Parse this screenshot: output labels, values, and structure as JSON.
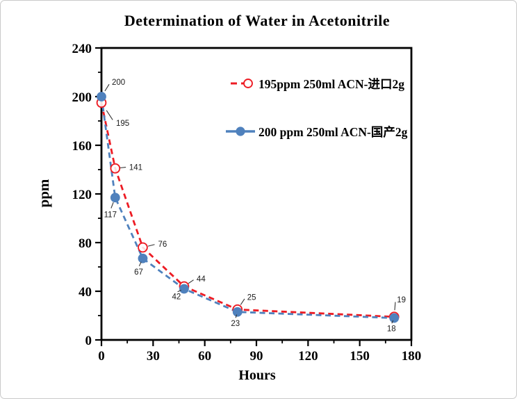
{
  "window": {
    "background": "#ffffff",
    "frame_border_color": "#c9c9c9"
  },
  "chart_data": {
    "type": "line",
    "title": "Determination of Water in Acetonitrile",
    "xlabel": "Hours",
    "ylabel": "ppm",
    "xlim": [
      0,
      180
    ],
    "ylim": [
      0,
      240
    ],
    "x_major_ticks": [
      0,
      30,
      60,
      90,
      120,
      150,
      180
    ],
    "x_minor_ticks": [
      15,
      45,
      75,
      105,
      135,
      165
    ],
    "y_major_ticks": [
      0,
      40,
      80,
      120,
      160,
      200,
      240
    ],
    "y_minor_ticks": [
      20,
      60,
      100,
      140,
      180,
      220
    ],
    "grid": false,
    "legend_position": "inside-upper-center",
    "axis_color": "#000000",
    "annotation_color": "#1a1a1a",
    "series": [
      {
        "name": "195ppm  250ml ACN-进口2g",
        "color": "#ed1c24",
        "marker": "open-circle",
        "line_style": "dashed",
        "points": [
          {
            "x": 0,
            "y": 195,
            "label": "195",
            "lx": 21,
            "ly": 33,
            "anchor": "start"
          },
          {
            "x": 8,
            "y": 141,
            "label": "141",
            "lx": 20,
            "ly": 2,
            "anchor": "start"
          },
          {
            "x": 24,
            "y": 76,
            "label": "76",
            "lx": 22,
            "ly": -1,
            "anchor": "start"
          },
          {
            "x": 48,
            "y": 44,
            "label": "44",
            "lx": 18,
            "ly": -7,
            "anchor": "start"
          },
          {
            "x": 79,
            "y": 25,
            "label": "25",
            "lx": 14,
            "ly": -14,
            "anchor": "start"
          },
          {
            "x": 170,
            "y": 19,
            "label": "19",
            "lx": 4,
            "ly": -21,
            "anchor": "start"
          }
        ]
      },
      {
        "name": "200 ppm 250ml ACN-国产2g",
        "color": "#4f81bd",
        "marker": "filled-circle",
        "line_style": "dashed",
        "points": [
          {
            "x": 0,
            "y": 200,
            "label": "200",
            "lx": 15,
            "ly": -17,
            "anchor": "start"
          },
          {
            "x": 8,
            "y": 117,
            "label": "117",
            "lx": -7,
            "ly": 28,
            "anchor": "middle"
          },
          {
            "x": 24,
            "y": 67,
            "label": "67",
            "lx": -6,
            "ly": 23,
            "anchor": "middle"
          },
          {
            "x": 48,
            "y": 42,
            "label": "42",
            "lx": -11,
            "ly": 15,
            "anchor": "middle"
          },
          {
            "x": 79,
            "y": 23,
            "label": "23",
            "lx": -3,
            "ly": 20,
            "anchor": "middle"
          },
          {
            "x": 170,
            "y": 18,
            "label": "18",
            "lx": -4,
            "ly": 19,
            "anchor": "middle"
          }
        ]
      }
    ]
  }
}
